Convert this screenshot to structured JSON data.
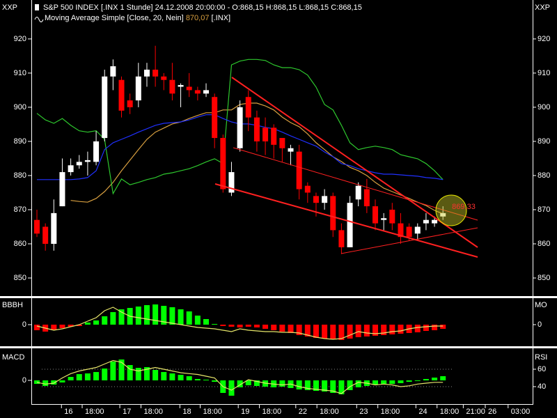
{
  "chart_data": [
    {
      "type": "candlestick",
      "title": "S&P 500 INDEX [.INX  1 Stunde] 24.12.2008 20:00:00 - O:868,15 H:868,15 L:868,15 C:868,15",
      "subtitle": "Moving Average Simple [Close, 20, Nein]",
      "current": "870,07",
      "symbol": "[.INX]",
      "y_label": "XXP",
      "y2_label": "XXP",
      "annotation": "869,33",
      "up_color": "#ffffff",
      "down_color": "#ff0000",
      "x": [
        0,
        1,
        2,
        3,
        4,
        5,
        6,
        7,
        8,
        9,
        10,
        11,
        12,
        13,
        14,
        15,
        16,
        17,
        18,
        19,
        20,
        21,
        22,
        23,
        24,
        25,
        26,
        27,
        28,
        29,
        30,
        31,
        32,
        33,
        34,
        35,
        36,
        37,
        38,
        39,
        40,
        41,
        42,
        43,
        44,
        45,
        46,
        47,
        48
      ],
      "open": [
        867,
        865,
        860,
        871,
        881,
        883,
        884,
        884,
        891,
        909,
        908,
        902,
        902,
        909,
        911,
        909,
        908,
        906,
        906,
        905,
        904,
        903,
        891,
        875,
        888,
        903,
        897,
        894,
        894,
        891,
        887,
        887,
        877,
        874,
        872,
        874,
        864,
        859,
        873,
        876,
        871,
        867,
        870,
        866,
        865,
        863,
        866,
        866,
        868
      ],
      "high": [
        870,
        866,
        873,
        885,
        885,
        886,
        887,
        893,
        911,
        914,
        909,
        904,
        913,
        913,
        918,
        910,
        913,
        907,
        910,
        906,
        907,
        904,
        892,
        884,
        902,
        905,
        899,
        897,
        895,
        891,
        889,
        889,
        878,
        875,
        876,
        875,
        866,
        874,
        878,
        879,
        873,
        869,
        872,
        869,
        866,
        866,
        869,
        868,
        871
      ],
      "low": [
        862,
        858,
        858,
        871,
        880,
        882,
        880,
        883,
        890,
        905,
        897,
        898,
        900,
        906,
        906,
        905,
        902,
        900,
        903,
        902,
        903,
        888,
        875,
        874,
        887,
        893,
        887,
        886,
        885,
        884,
        883,
        873,
        872,
        868,
        870,
        862,
        857,
        859,
        871,
        869,
        864,
        864,
        864,
        860,
        861,
        861,
        864,
        865,
        867
      ],
      "close": [
        863,
        860,
        869,
        881,
        883,
        884,
        884.5,
        890,
        909,
        912,
        899,
        900,
        909,
        911,
        909,
        908,
        904,
        906.5,
        905,
        904,
        905,
        891,
        876,
        881,
        900,
        897,
        890,
        890,
        889,
        888,
        888,
        876,
        875,
        872,
        874,
        864,
        859,
        872,
        877,
        871,
        866,
        867.5,
        866,
        862,
        862,
        865,
        867,
        867,
        869
      ],
      "series": [
        {
          "name": "Moving Average Simple [Close, 20, Nein]",
          "color": "#d9a040",
          "values": [
            null,
            null,
            null,
            null,
            872.7,
            872.4,
            872.2,
            873.3,
            875.3,
            878.0,
            881.4,
            884.5,
            887.6,
            890.6,
            892.7,
            893.9,
            895.1,
            895.7,
            896.7,
            897.6,
            898.4,
            898.4,
            899.2,
            899.2,
            900.8,
            901.2,
            901.2,
            900.4,
            899.2,
            897.1,
            895.5,
            894.3,
            892.2,
            889.6,
            887.6,
            885.5,
            884.1,
            882.4,
            881.4,
            880.0,
            878.0,
            876.3,
            875.3,
            874.3,
            873.3,
            872.2,
            871.2,
            869.8,
            868.8
          ]
        },
        {
          "color": "#2ec82e",
          "values": [
            898.2,
            896.3,
            895.3,
            896.7,
            894.7,
            893.1,
            892.7,
            893.1,
            890.6,
            874.7,
            879.0,
            877.3,
            878.0,
            878.8,
            879.4,
            880.4,
            880.8,
            881.4,
            882.0,
            882.9,
            884.0,
            884.9,
            883.5,
            912.4,
            913.5,
            914.0,
            914.0,
            913.7,
            912.4,
            911.6,
            911.6,
            911.0,
            909.4,
            905.9,
            900.8,
            899.2,
            894.7,
            889.6,
            887.6,
            888.2,
            888.6,
            888.2,
            887.6,
            886.1,
            885.5,
            884.9,
            883.5,
            881.4,
            878.8
          ]
        },
        {
          "color": "#2030ff",
          "values": [
            878.8,
            878.8,
            878.8,
            878.8,
            878.8,
            879.0,
            879.4,
            881.4,
            887.6,
            889.6,
            890.6,
            891.6,
            892.7,
            893.7,
            894.7,
            895.3,
            895.5,
            895.7,
            896.3,
            897.1,
            897.8,
            897.8,
            896.7,
            895.7,
            895.1,
            895.1,
            894.7,
            894.1,
            893.7,
            892.7,
            891.6,
            890.6,
            889.6,
            888.6,
            886.9,
            885.5,
            883.5,
            882.9,
            882.0,
            881.4,
            880.8,
            880.4,
            880.4,
            880.2,
            880.0,
            879.8,
            879.4,
            879.2,
            878.8
          ]
        }
      ],
      "ylim": [
        844.7,
        931.4
      ],
      "yticks": [
        850,
        860,
        870,
        880,
        890,
        900,
        910,
        920
      ],
      "y2lim": [
        844.7,
        931.4
      ],
      "y2ticks": [
        850,
        860,
        870,
        880,
        890,
        900,
        910,
        920
      ]
    },
    {
      "type": "bar",
      "y_label": "BBBH",
      "y2_label": "MO",
      "ylim": [
        -3.1,
        3.8
      ],
      "yticks": [
        0
      ],
      "y2lim": [
        -3.1,
        3.8
      ],
      "y2ticks": [
        0
      ],
      "series": [
        {
          "pos_color": "#00ff00",
          "neg_color": "#ff0000",
          "values": [
            -0.8,
            -1.0,
            -0.8,
            -0.5,
            -0.3,
            -0.2,
            0.3,
            0.6,
            1.2,
            1.8,
            2.2,
            2.4,
            2.6,
            2.8,
            2.9,
            2.7,
            2.5,
            2.2,
            1.9,
            1.3,
            0.8,
            0.1,
            -0.2,
            -0.3,
            -0.4,
            -0.3,
            -0.4,
            -0.6,
            -0.8,
            -1.0,
            -1.2,
            -1.5,
            -1.7,
            -1.9,
            -2.0,
            -2.1,
            -2.2,
            -2.0,
            -1.8,
            -1.7,
            -1.6,
            -1.5,
            -1.4,
            -1.3,
            -1.2,
            -1.1,
            -0.9,
            -0.8,
            -0.6
          ]
        },
        {
          "color": "#e6e66a",
          "axis": "y2",
          "values": [
            -0.2,
            -0.5,
            -0.8,
            -0.6,
            -0.3,
            0,
            0.5,
            1.0,
            2.0,
            2.5,
            1.8,
            1.2,
            1.0,
            0.8,
            0.6,
            0.4,
            0.2,
            0,
            -0.2,
            -0.4,
            -0.5,
            -0.6,
            -0.8,
            -1.0,
            -0.6,
            -0.8,
            -0.9,
            -1.0,
            -1.0,
            -1.1,
            -1.1,
            -1.2,
            -1.5,
            -1.8,
            -2.0,
            -2.1,
            -2.0,
            -1.5,
            -1.0,
            -1.2,
            -1.3,
            -1.2,
            -1.0,
            -0.9,
            -0.6,
            -0.4,
            -0.3,
            -0.2,
            -0.2
          ]
        }
      ]
    },
    {
      "type": "bar",
      "y_label": "MACD",
      "y2_label": "RSI",
      "ylim": [
        -3.4,
        4.3
      ],
      "yticks": [
        0
      ],
      "y2lim": [
        20,
        81.6
      ],
      "y2ticks": [
        60,
        40
      ],
      "xlim": [
        -0.66,
        58.6
      ],
      "xticks": [
        {
          "value": 2.9,
          "label": "16"
        },
        {
          "value": 5.35,
          "label": "18:00"
        },
        {
          "value": 9.8,
          "label": "17"
        },
        {
          "value": 12.3,
          "label": "18:00"
        },
        {
          "value": 16.9,
          "label": "18"
        },
        {
          "value": 19.3,
          "label": "18:00"
        },
        {
          "value": 23.8,
          "label": "19"
        },
        {
          "value": 26.3,
          "label": "18:00"
        },
        {
          "value": 30.6,
          "label": "22"
        },
        {
          "value": 33.1,
          "label": "18:00"
        },
        {
          "value": 37.8,
          "label": "23"
        },
        {
          "value": 40.3,
          "label": "18:00"
        },
        {
          "value": 44.8,
          "label": "24"
        },
        {
          "value": 47.3,
          "label": "18:00"
        },
        {
          "value": 50.4,
          "label": "21:00"
        },
        {
          "value": 53,
          "label": "26"
        },
        {
          "value": 55.7,
          "label": "03:00"
        }
      ],
      "series": [
        {
          "color": "#00ff00",
          "values": [
            -0.5,
            -0.8,
            -0.6,
            -0.3,
            0.5,
            0.9,
            1.0,
            1.2,
            1.7,
            2.7,
            3.0,
            2.2,
            1.8,
            1.9,
            1.5,
            1.2,
            1.0,
            0.8,
            0.6,
            0.2,
            0.1,
            -0.2,
            -1.8,
            -2.2,
            -1.0,
            -0.7,
            -0.8,
            -0.9,
            -1.0,
            -0.9,
            -1.1,
            -1.3,
            -1.4,
            -1.5,
            -1.6,
            -1.8,
            -2.0,
            -1.4,
            -1.0,
            -0.8,
            -0.6,
            -0.5,
            -0.5,
            -0.4,
            -0.2,
            0,
            0.2,
            0.4,
            0.6
          ]
        },
        {
          "color": "#e6e66a",
          "axis": "y2",
          "values": [
            45,
            43,
            44,
            50,
            55,
            58,
            60,
            62,
            66,
            70,
            68,
            60,
            58,
            60,
            62,
            60,
            58,
            56,
            55,
            54,
            52,
            50,
            40,
            36,
            42,
            48,
            46,
            44,
            43,
            42,
            43,
            40,
            38,
            37,
            36,
            35,
            32,
            40,
            45,
            44,
            42,
            43,
            42,
            40,
            41,
            43,
            44,
            45,
            45
          ]
        }
      ]
    }
  ]
}
